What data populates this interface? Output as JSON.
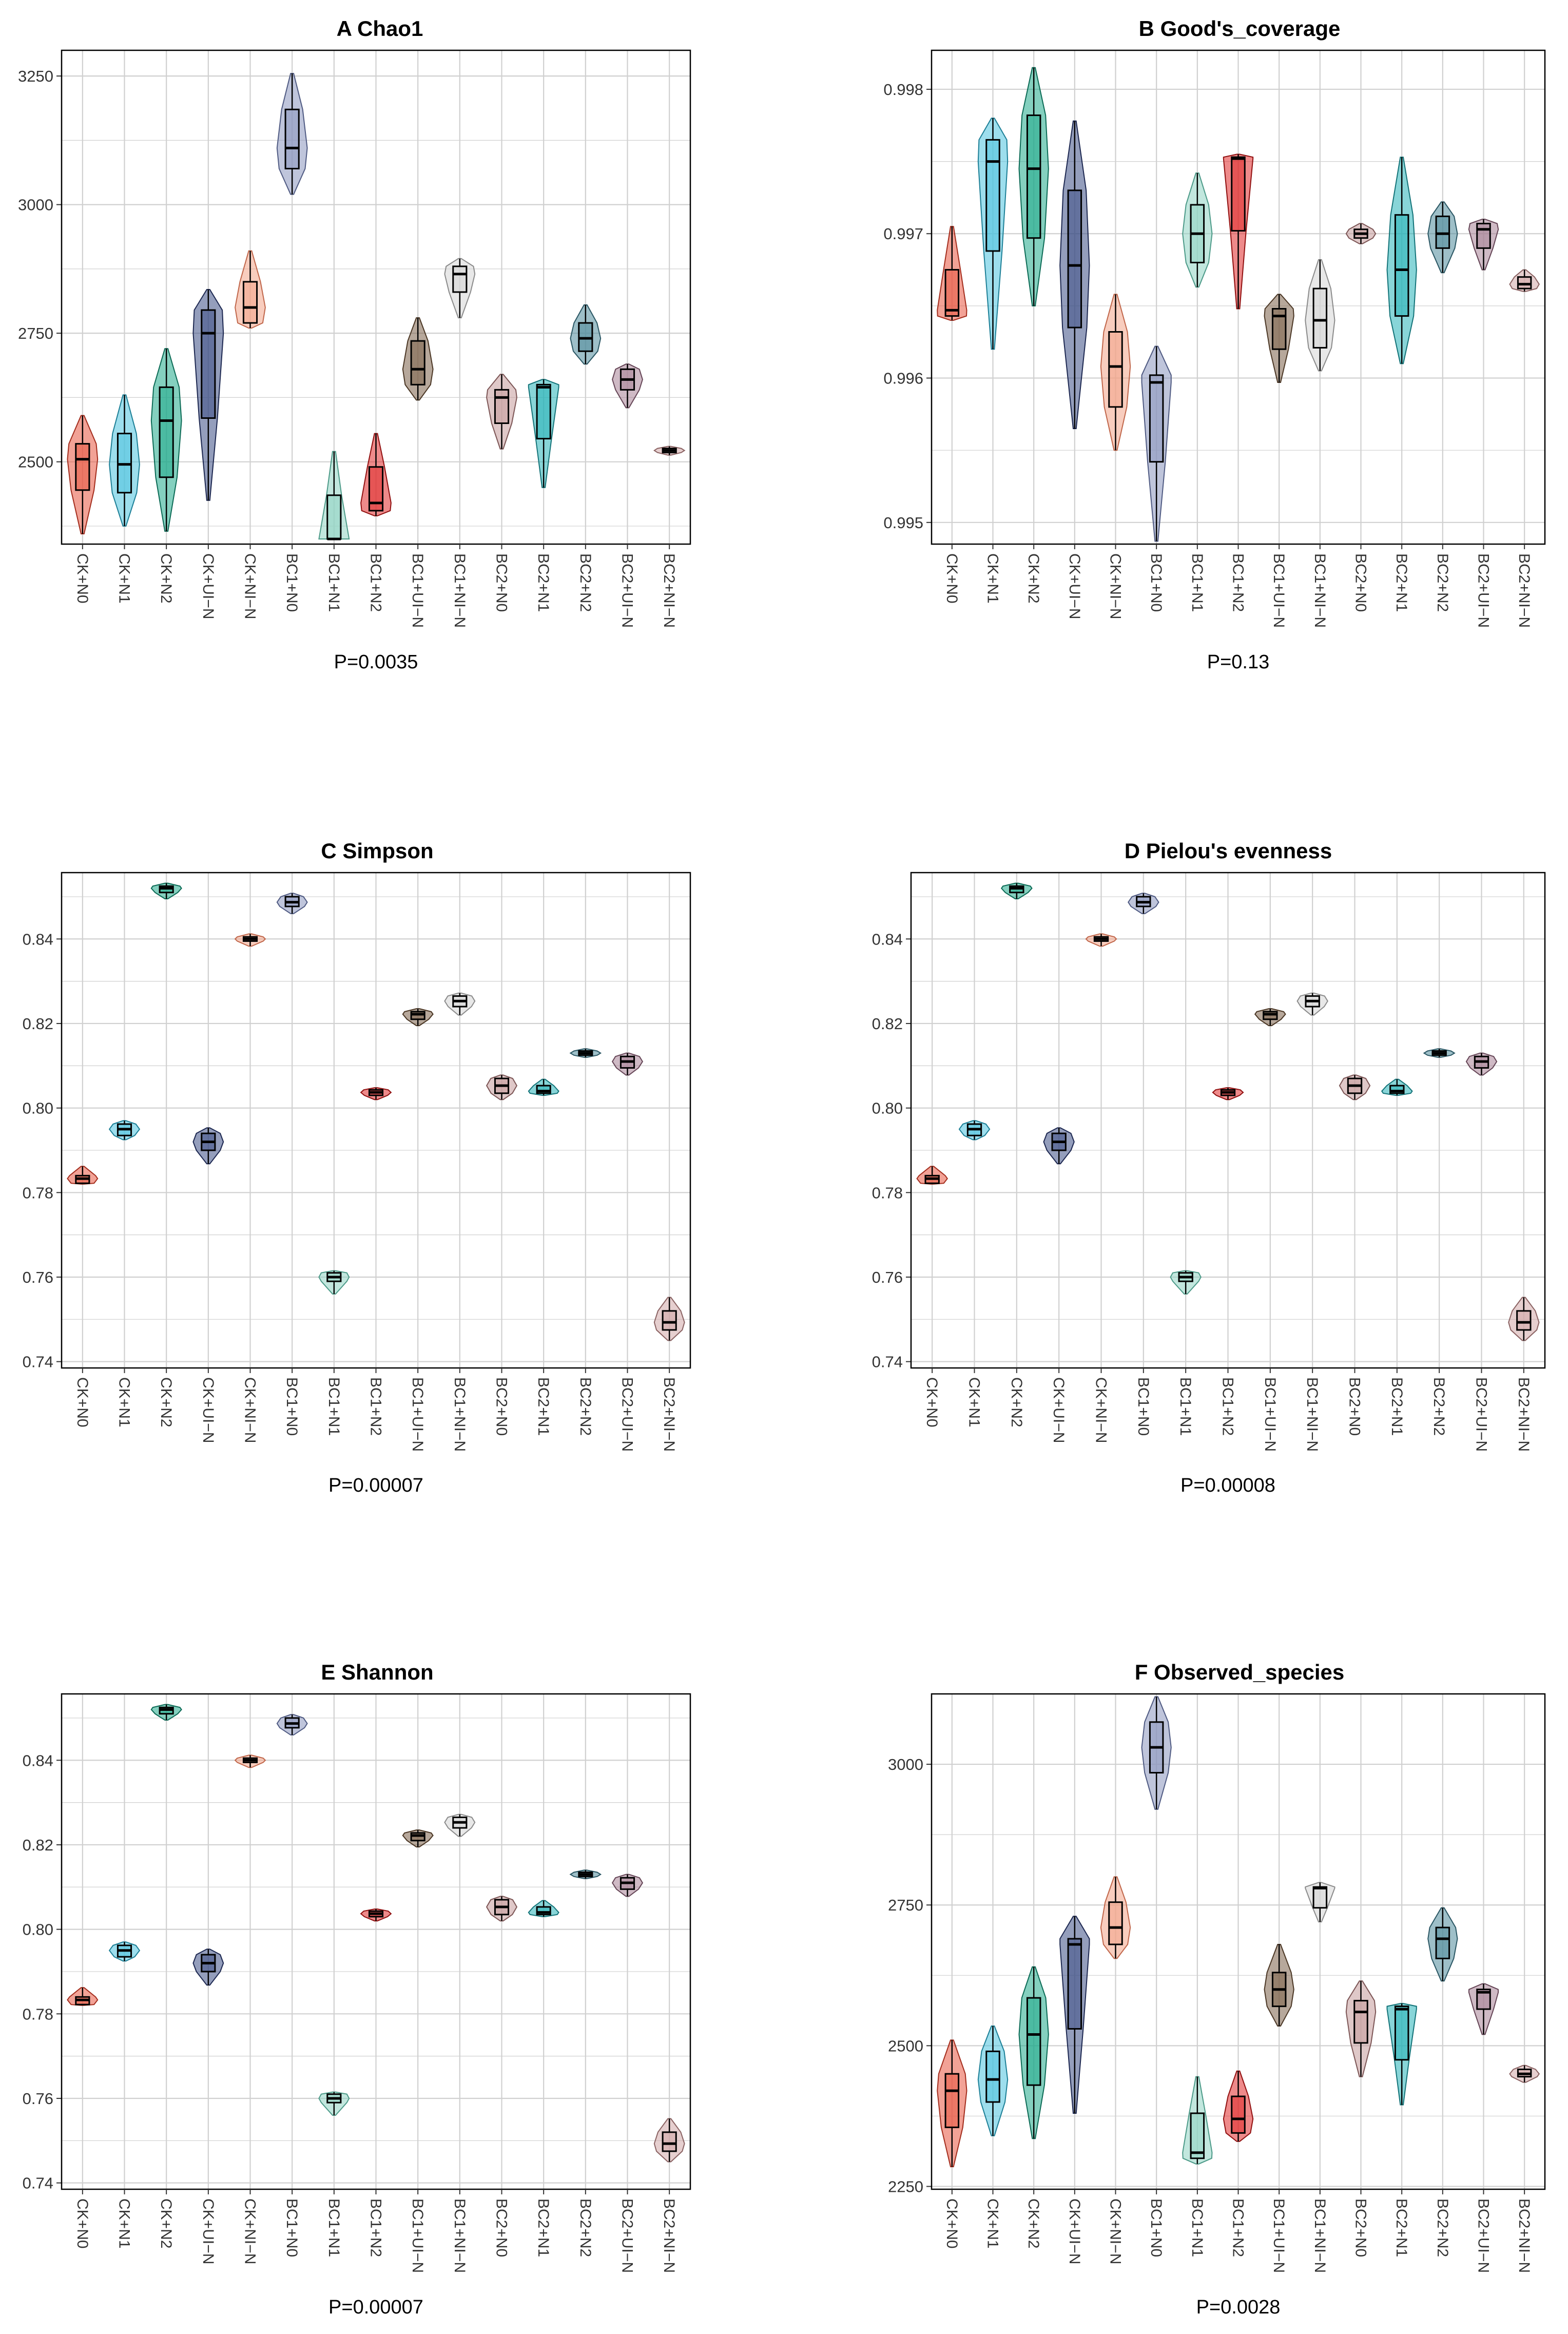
{
  "chart_data": [
    {
      "panel": "A",
      "title": "A  Chao1",
      "type": "violin-box",
      "categories": [
        "CK+N0",
        "CK+N1",
        "CK+N2",
        "CK+UI−N",
        "CK+NI−N",
        "BC1+N0",
        "BC1+N1",
        "BC1+N2",
        "BC1+UI−N",
        "BC1+NI−N",
        "BC2+N0",
        "BC2+N1",
        "BC2+N2",
        "BC2+UI−N",
        "BC2+NI−N"
      ],
      "yticks": [
        2500,
        2750,
        3000,
        3250
      ],
      "ylim": [
        2340,
        3300
      ],
      "pvalue": "P=0.0035",
      "boxes": [
        {
          "min": 2360,
          "q1": 2445,
          "median": 2505,
          "q3": 2535,
          "max": 2590
        },
        {
          "min": 2375,
          "q1": 2440,
          "median": 2495,
          "q3": 2555,
          "max": 2630
        },
        {
          "min": 2365,
          "q1": 2470,
          "median": 2580,
          "q3": 2645,
          "max": 2720
        },
        {
          "min": 2425,
          "q1": 2585,
          "median": 2750,
          "q3": 2795,
          "max": 2835
        },
        {
          "min": 2760,
          "q1": 2770,
          "median": 2800,
          "q3": 2850,
          "max": 2910
        },
        {
          "min": 3020,
          "q1": 3070,
          "median": 3110,
          "q3": 3185,
          "max": 3255
        },
        {
          "min": 2350,
          "q1": 2350,
          "median": 2350,
          "q3": 2435,
          "max": 2520
        },
        {
          "min": 2395,
          "q1": 2405,
          "median": 2420,
          "q3": 2490,
          "max": 2555
        },
        {
          "min": 2620,
          "q1": 2650,
          "median": 2680,
          "q3": 2735,
          "max": 2780
        },
        {
          "min": 2780,
          "q1": 2830,
          "median": 2865,
          "q3": 2880,
          "max": 2895
        },
        {
          "min": 2525,
          "q1": 2575,
          "median": 2625,
          "q3": 2640,
          "max": 2670
        },
        {
          "min": 2450,
          "q1": 2545,
          "median": 2645,
          "q3": 2650,
          "max": 2660
        },
        {
          "min": 2690,
          "q1": 2715,
          "median": 2740,
          "q3": 2770,
          "max": 2805
        },
        {
          "min": 2605,
          "q1": 2640,
          "median": 2660,
          "q3": 2680,
          "max": 2690
        },
        {
          "min": 2513,
          "q1": 2518,
          "median": 2522,
          "q3": 2526,
          "max": 2530
        }
      ]
    },
    {
      "panel": "B",
      "title": "B  Good's_coverage",
      "type": "violin-box",
      "categories": [
        "CK+N0",
        "CK+N1",
        "CK+N2",
        "CK+UI−N",
        "CK+NI−N",
        "BC1+N0",
        "BC1+N1",
        "BC1+N2",
        "BC1+UI−N",
        "BC1+NI−N",
        "BC2+N0",
        "BC2+N1",
        "BC2+N2",
        "BC2+UI−N",
        "BC2+NI−N"
      ],
      "yticks": [
        0.995,
        0.996,
        0.997,
        0.998
      ],
      "ylim": [
        0.99485,
        0.99827
      ],
      "pvalue": "P=0.13",
      "boxes": [
        {
          "min": 0.9964,
          "q1": 0.99643,
          "median": 0.99647,
          "q3": 0.99675,
          "max": 0.99705
        },
        {
          "min": 0.9962,
          "q1": 0.99688,
          "median": 0.9975,
          "q3": 0.99765,
          "max": 0.9978
        },
        {
          "min": 0.9965,
          "q1": 0.99697,
          "median": 0.99745,
          "q3": 0.99782,
          "max": 0.99815
        },
        {
          "min": 0.99565,
          "q1": 0.99635,
          "median": 0.99678,
          "q3": 0.9973,
          "max": 0.99778
        },
        {
          "min": 0.9955,
          "q1": 0.9958,
          "median": 0.99608,
          "q3": 0.99632,
          "max": 0.99658
        },
        {
          "min": 0.99487,
          "q1": 0.99542,
          "median": 0.99597,
          "q3": 0.99602,
          "max": 0.99622
        },
        {
          "min": 0.99663,
          "q1": 0.9968,
          "median": 0.997,
          "q3": 0.9972,
          "max": 0.99742
        },
        {
          "min": 0.99648,
          "q1": 0.99702,
          "median": 0.99752,
          "q3": 0.99753,
          "max": 0.99755
        },
        {
          "min": 0.99597,
          "q1": 0.9962,
          "median": 0.99643,
          "q3": 0.99648,
          "max": 0.99658
        },
        {
          "min": 0.99605,
          "q1": 0.99621,
          "median": 0.9964,
          "q3": 0.99662,
          "max": 0.99682
        },
        {
          "min": 0.99693,
          "q1": 0.99697,
          "median": 0.997,
          "q3": 0.99703,
          "max": 0.99707
        },
        {
          "min": 0.9961,
          "q1": 0.99643,
          "median": 0.99675,
          "q3": 0.99713,
          "max": 0.99753
        },
        {
          "min": 0.99673,
          "q1": 0.9969,
          "median": 0.997,
          "q3": 0.99712,
          "max": 0.99722
        },
        {
          "min": 0.99675,
          "q1": 0.9969,
          "median": 0.99703,
          "q3": 0.99707,
          "max": 0.9971
        },
        {
          "min": 0.9966,
          "q1": 0.99662,
          "median": 0.99665,
          "q3": 0.9967,
          "max": 0.99675
        }
      ]
    },
    {
      "panel": "C",
      "title": "C  Simpson",
      "type": "violin-box",
      "categories": [
        "CK+N0",
        "CK+N1",
        "CK+N2",
        "CK+UI−N",
        "CK+NI−N",
        "BC1+N0",
        "BC1+N1",
        "BC1+N2",
        "BC1+UI−N",
        "BC1+NI−N",
        "BC2+N0",
        "BC2+N1",
        "BC2+N2",
        "BC2+UI−N",
        "BC2+NI−N"
      ],
      "yticks": [
        0.74,
        0.76,
        0.78,
        0.8,
        0.82,
        0.84
      ],
      "ylim": [
        0.7385,
        0.8557
      ],
      "pvalue": "P=0.00007",
      "boxes": [
        {
          "min": 0.782,
          "q1": 0.7822,
          "median": 0.7833,
          "q3": 0.784,
          "max": 0.7862
        },
        {
          "min": 0.7925,
          "q1": 0.7935,
          "median": 0.795,
          "q3": 0.7962,
          "max": 0.797
        },
        {
          "min": 0.8495,
          "q1": 0.851,
          "median": 0.852,
          "q3": 0.8525,
          "max": 0.8532
        },
        {
          "min": 0.7868,
          "q1": 0.79,
          "median": 0.792,
          "q3": 0.794,
          "max": 0.7953
        },
        {
          "min": 0.8383,
          "q1": 0.8395,
          "median": 0.84,
          "q3": 0.8405,
          "max": 0.8412
        },
        {
          "min": 0.846,
          "q1": 0.8477,
          "median": 0.8487,
          "q3": 0.85,
          "max": 0.8508
        },
        {
          "min": 0.756,
          "q1": 0.759,
          "median": 0.76,
          "q3": 0.761,
          "max": 0.7615
        },
        {
          "min": 0.802,
          "q1": 0.803,
          "median": 0.8037,
          "q3": 0.8043,
          "max": 0.8048
        },
        {
          "min": 0.8195,
          "q1": 0.821,
          "median": 0.8222,
          "q3": 0.8228,
          "max": 0.8235
        },
        {
          "min": 0.822,
          "q1": 0.824,
          "median": 0.8253,
          "q3": 0.8265,
          "max": 0.8272
        },
        {
          "min": 0.802,
          "q1": 0.8035,
          "median": 0.8053,
          "q3": 0.807,
          "max": 0.8078
        },
        {
          "min": 0.803,
          "q1": 0.8035,
          "median": 0.804,
          "q3": 0.8053,
          "max": 0.8068
        },
        {
          "min": 0.812,
          "q1": 0.8125,
          "median": 0.813,
          "q3": 0.8135,
          "max": 0.814
        },
        {
          "min": 0.8078,
          "q1": 0.8095,
          "median": 0.811,
          "q3": 0.8122,
          "max": 0.813
        },
        {
          "min": 0.745,
          "q1": 0.7475,
          "median": 0.7493,
          "q3": 0.752,
          "max": 0.7552
        }
      ]
    },
    {
      "panel": "D",
      "title": "D  Pielou's evenness",
      "type": "violin-box",
      "categories": [
        "CK+N0",
        "CK+N1",
        "CK+N2",
        "CK+UI−N",
        "CK+NI−N",
        "BC1+N0",
        "BC1+N1",
        "BC1+N2",
        "BC1+UI−N",
        "BC1+NI−N",
        "BC2+N0",
        "BC2+N1",
        "BC2+N2",
        "BC2+UI−N",
        "BC2+NI−N"
      ],
      "yticks": [
        0.74,
        0.76,
        0.78,
        0.8,
        0.82,
        0.84
      ],
      "ylim": [
        0.7385,
        0.8557
      ],
      "pvalue": "P=0.00008",
      "boxes": [
        {
          "min": 0.782,
          "q1": 0.7822,
          "median": 0.7833,
          "q3": 0.784,
          "max": 0.7862
        },
        {
          "min": 0.7925,
          "q1": 0.7935,
          "median": 0.795,
          "q3": 0.7962,
          "max": 0.797
        },
        {
          "min": 0.8495,
          "q1": 0.851,
          "median": 0.852,
          "q3": 0.8525,
          "max": 0.8532
        },
        {
          "min": 0.7868,
          "q1": 0.79,
          "median": 0.792,
          "q3": 0.794,
          "max": 0.7953
        },
        {
          "min": 0.8383,
          "q1": 0.8395,
          "median": 0.84,
          "q3": 0.8405,
          "max": 0.8412
        },
        {
          "min": 0.846,
          "q1": 0.8477,
          "median": 0.8487,
          "q3": 0.85,
          "max": 0.8508
        },
        {
          "min": 0.756,
          "q1": 0.759,
          "median": 0.76,
          "q3": 0.761,
          "max": 0.7615
        },
        {
          "min": 0.802,
          "q1": 0.803,
          "median": 0.8037,
          "q3": 0.8043,
          "max": 0.8048
        },
        {
          "min": 0.8195,
          "q1": 0.821,
          "median": 0.8222,
          "q3": 0.8228,
          "max": 0.8235
        },
        {
          "min": 0.822,
          "q1": 0.824,
          "median": 0.8253,
          "q3": 0.8265,
          "max": 0.8272
        },
        {
          "min": 0.802,
          "q1": 0.8035,
          "median": 0.8053,
          "q3": 0.807,
          "max": 0.8078
        },
        {
          "min": 0.803,
          "q1": 0.8035,
          "median": 0.804,
          "q3": 0.8053,
          "max": 0.8068
        },
        {
          "min": 0.812,
          "q1": 0.8125,
          "median": 0.813,
          "q3": 0.8135,
          "max": 0.814
        },
        {
          "min": 0.8078,
          "q1": 0.8095,
          "median": 0.811,
          "q3": 0.8122,
          "max": 0.813
        },
        {
          "min": 0.745,
          "q1": 0.7475,
          "median": 0.7493,
          "q3": 0.752,
          "max": 0.7552
        }
      ]
    },
    {
      "panel": "E",
      "title": "E  Shannon",
      "type": "violin-box",
      "categories": [
        "CK+N0",
        "CK+N1",
        "CK+N2",
        "CK+UI−N",
        "CK+NI−N",
        "BC1+N0",
        "BC1+N1",
        "BC1+N2",
        "BC1+UI−N",
        "BC1+NI−N",
        "BC2+N0",
        "BC2+N1",
        "BC2+N2",
        "BC2+UI−N",
        "BC2+NI−N"
      ],
      "yticks": [
        0.74,
        0.76,
        0.78,
        0.8,
        0.82,
        0.84
      ],
      "ylim": [
        0.7385,
        0.8557
      ],
      "pvalue": "P=0.00007",
      "boxes": [
        {
          "min": 0.782,
          "q1": 0.7822,
          "median": 0.7833,
          "q3": 0.784,
          "max": 0.7862
        },
        {
          "min": 0.7925,
          "q1": 0.7935,
          "median": 0.795,
          "q3": 0.7962,
          "max": 0.797
        },
        {
          "min": 0.8495,
          "q1": 0.851,
          "median": 0.852,
          "q3": 0.8525,
          "max": 0.8532
        },
        {
          "min": 0.7868,
          "q1": 0.79,
          "median": 0.792,
          "q3": 0.794,
          "max": 0.7953
        },
        {
          "min": 0.8383,
          "q1": 0.8395,
          "median": 0.84,
          "q3": 0.8405,
          "max": 0.8412
        },
        {
          "min": 0.846,
          "q1": 0.8477,
          "median": 0.8487,
          "q3": 0.85,
          "max": 0.8508
        },
        {
          "min": 0.756,
          "q1": 0.759,
          "median": 0.76,
          "q3": 0.761,
          "max": 0.7615
        },
        {
          "min": 0.802,
          "q1": 0.803,
          "median": 0.8037,
          "q3": 0.8043,
          "max": 0.8048
        },
        {
          "min": 0.8195,
          "q1": 0.821,
          "median": 0.8222,
          "q3": 0.8228,
          "max": 0.8235
        },
        {
          "min": 0.822,
          "q1": 0.824,
          "median": 0.8253,
          "q3": 0.8265,
          "max": 0.8272
        },
        {
          "min": 0.802,
          "q1": 0.8035,
          "median": 0.8053,
          "q3": 0.807,
          "max": 0.8078
        },
        {
          "min": 0.803,
          "q1": 0.8035,
          "median": 0.804,
          "q3": 0.8053,
          "max": 0.8068
        },
        {
          "min": 0.812,
          "q1": 0.8125,
          "median": 0.813,
          "q3": 0.8135,
          "max": 0.814
        },
        {
          "min": 0.8078,
          "q1": 0.8095,
          "median": 0.811,
          "q3": 0.8122,
          "max": 0.813
        },
        {
          "min": 0.745,
          "q1": 0.7475,
          "median": 0.7493,
          "q3": 0.752,
          "max": 0.7552
        }
      ]
    },
    {
      "panel": "F",
      "title": "F  Observed_species",
      "type": "violin-box",
      "categories": [
        "CK+N0",
        "CK+N1",
        "CK+N2",
        "CK+UI−N",
        "CK+NI−N",
        "BC1+N0",
        "BC1+N1",
        "BC1+N2",
        "BC1+UI−N",
        "BC1+NI−N",
        "BC2+N0",
        "BC2+N1",
        "BC2+N2",
        "BC2+UI−N",
        "BC2+NI−N"
      ],
      "yticks": [
        2250,
        2500,
        2750,
        3000
      ],
      "ylim": [
        2245,
        3125
      ],
      "pvalue": "P=0.0028",
      "boxes": [
        {
          "min": 2285,
          "q1": 2355,
          "median": 2420,
          "q3": 2450,
          "max": 2510
        },
        {
          "min": 2340,
          "q1": 2400,
          "median": 2440,
          "q3": 2490,
          "max": 2535
        },
        {
          "min": 2335,
          "q1": 2430,
          "median": 2520,
          "q3": 2585,
          "max": 2640
        },
        {
          "min": 2380,
          "q1": 2530,
          "median": 2680,
          "q3": 2690,
          "max": 2730
        },
        {
          "min": 2655,
          "q1": 2680,
          "median": 2710,
          "q3": 2755,
          "max": 2800
        },
        {
          "min": 2920,
          "q1": 2985,
          "median": 3030,
          "q3": 3075,
          "max": 3120
        },
        {
          "min": 2290,
          "q1": 2300,
          "median": 2310,
          "q3": 2380,
          "max": 2445
        },
        {
          "min": 2330,
          "q1": 2345,
          "median": 2370,
          "q3": 2410,
          "max": 2455
        },
        {
          "min": 2535,
          "q1": 2570,
          "median": 2600,
          "q3": 2630,
          "max": 2680
        },
        {
          "min": 2720,
          "q1": 2745,
          "median": 2780,
          "q3": 2782,
          "max": 2790
        },
        {
          "min": 2445,
          "q1": 2505,
          "median": 2560,
          "q3": 2580,
          "max": 2615
        },
        {
          "min": 2395,
          "q1": 2475,
          "median": 2565,
          "q3": 2570,
          "max": 2575
        },
        {
          "min": 2615,
          "q1": 2655,
          "median": 2690,
          "q3": 2710,
          "max": 2745
        },
        {
          "min": 2520,
          "q1": 2565,
          "median": 2595,
          "q3": 2600,
          "max": 2610
        },
        {
          "min": 2435,
          "q1": 2445,
          "median": 2450,
          "q3": 2458,
          "max": 2465
        }
      ]
    }
  ],
  "colors": {
    "groups": [
      "#e8553f",
      "#4dc3de",
      "#1fa98a",
      "#3d4e85",
      "#f2a488",
      "#8a96bd",
      "#8fd3c3",
      "#e02a2a",
      "#7c6148",
      "#d5d5d5",
      "#c49a9a",
      "#27b3b8",
      "#4e8a9a",
      "#a88295",
      "#d1a8a8"
    ],
    "edges": [
      "#a32c1c",
      "#1c7f96",
      "#0b6a55",
      "#1c2750",
      "#c0664a",
      "#4f5a82",
      "#4c9a88",
      "#900f0f",
      "#4a3624",
      "#8a8a8a",
      "#7c5555",
      "#137378",
      "#2a5663",
      "#654556",
      "#8a6262"
    ],
    "grid": "#d0d0d0",
    "frame": "#000000"
  }
}
